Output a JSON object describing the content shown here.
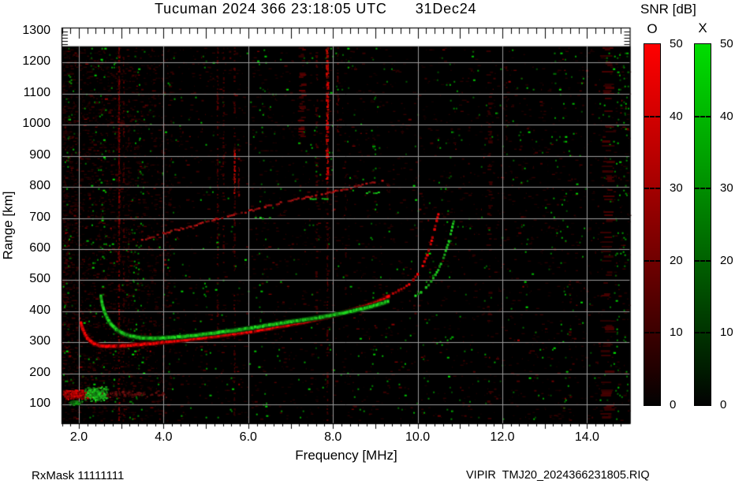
{
  "title": {
    "text": "Tucuman 2024 366 23:18:05 UTC",
    "date": "31Dec24"
  },
  "footer": {
    "rx_mask": "RxMask 11111111",
    "file": "VIPIR  TMJ20_2024366231805.RIQ"
  },
  "chart_data": {
    "type": "heatmap",
    "title": "Tucuman 2024 366 23:18:05 UTC 31Dec24",
    "xlabel": "Frequency [MHz]",
    "ylabel": "Range [km]",
    "xlim": [
      1.6,
      15.0
    ],
    "ylim": [
      40,
      1310
    ],
    "data_top_km": 1252,
    "grid": true,
    "background": "#000000",
    "grid_color": "#9c9c9c",
    "x_tick_values": [
      2,
      4,
      6,
      8,
      10,
      12,
      14
    ],
    "x_tick_labels": [
      "2.0",
      "4.0",
      "6.0",
      "8.0",
      "10.0",
      "12.0",
      "14.0"
    ],
    "y_tick_values": [
      100,
      200,
      300,
      400,
      500,
      600,
      700,
      800,
      900,
      1000,
      1100,
      1200,
      1300
    ],
    "y_tick_labels": [
      "100",
      "200",
      "300",
      "400",
      "500",
      "600",
      "700",
      "800",
      "900",
      "1000",
      "1100",
      "1200",
      "1300"
    ],
    "minor_tick_step_mhz": 0.2,
    "minor_tick_step_km": 10,
    "colorbar": {
      "title": "SNR [dB]",
      "min": 0,
      "max": 50,
      "tick_values": [
        50,
        40,
        30,
        20,
        10,
        0
      ],
      "bars": [
        {
          "name": "O",
          "color": "#ff0000"
        },
        {
          "name": "X",
          "color": "#00dd00"
        }
      ]
    },
    "series": [
      {
        "name": "f2-o-main-trace",
        "mode": "O",
        "style": "line",
        "thickness": 3.2,
        "color": "#ee0505",
        "points": [
          [
            2.05,
            362
          ],
          [
            2.09,
            344
          ],
          [
            2.14,
            328
          ],
          [
            2.2,
            314
          ],
          [
            2.28,
            303
          ],
          [
            2.38,
            295
          ],
          [
            2.5,
            290
          ],
          [
            2.65,
            288
          ],
          [
            2.85,
            288
          ],
          [
            3.1,
            290
          ],
          [
            3.4,
            293
          ],
          [
            3.75,
            297
          ],
          [
            4.1,
            302
          ],
          [
            4.5,
            308
          ],
          [
            4.9,
            314
          ],
          [
            5.3,
            321
          ],
          [
            5.7,
            328
          ],
          [
            6.1,
            336
          ],
          [
            6.5,
            345
          ],
          [
            6.9,
            355
          ],
          [
            7.3,
            365
          ],
          [
            7.7,
            377
          ],
          [
            8.1,
            390
          ],
          [
            8.5,
            405
          ],
          [
            8.85,
            420
          ],
          [
            9.1,
            433
          ],
          [
            9.32,
            448
          ]
        ]
      },
      {
        "name": "f2-x-main-trace",
        "mode": "X",
        "style": "line",
        "thickness": 3.4,
        "color": "#1ecc1e",
        "points": [
          [
            2.52,
            448
          ],
          [
            2.55,
            424
          ],
          [
            2.6,
            400
          ],
          [
            2.67,
            378
          ],
          [
            2.76,
            358
          ],
          [
            2.88,
            342
          ],
          [
            3.02,
            330
          ],
          [
            3.2,
            321
          ],
          [
            3.45,
            315
          ],
          [
            3.75,
            313
          ],
          [
            4.1,
            315
          ],
          [
            4.5,
            319
          ],
          [
            4.9,
            325
          ],
          [
            5.3,
            332
          ],
          [
            5.7,
            339
          ],
          [
            6.1,
            347
          ],
          [
            6.5,
            356
          ],
          [
            6.9,
            365
          ],
          [
            7.3,
            372
          ],
          [
            7.7,
            381
          ],
          [
            8.1,
            391
          ],
          [
            8.5,
            402
          ],
          [
            8.85,
            413
          ],
          [
            9.1,
            423
          ],
          [
            9.3,
            432
          ]
        ]
      },
      {
        "name": "f2-o-cusp-trace",
        "mode": "O",
        "style": "dots",
        "color": "#e60505",
        "points": [
          [
            9.42,
            458
          ],
          [
            9.55,
            466
          ],
          [
            9.68,
            476
          ],
          [
            9.8,
            488
          ],
          [
            9.9,
            502
          ],
          [
            10.0,
            518
          ],
          [
            10.08,
            537
          ],
          [
            10.16,
            558
          ],
          [
            10.23,
            582
          ],
          [
            10.29,
            608
          ],
          [
            10.35,
            636
          ],
          [
            10.4,
            664
          ],
          [
            10.45,
            692
          ],
          [
            10.49,
            712
          ]
        ]
      },
      {
        "name": "f2-x-cusp-trace",
        "mode": "X",
        "style": "dots",
        "color": "#1cc41c",
        "points": [
          [
            9.95,
            448
          ],
          [
            10.08,
            460
          ],
          [
            10.2,
            476
          ],
          [
            10.32,
            495
          ],
          [
            10.42,
            517
          ],
          [
            10.52,
            543
          ],
          [
            10.61,
            572
          ],
          [
            10.69,
            604
          ],
          [
            10.76,
            638
          ],
          [
            10.82,
            672
          ],
          [
            10.87,
            700
          ]
        ]
      },
      {
        "name": "oblique-echo-trace",
        "mode": "O",
        "style": "patchy",
        "color": "#aa1212",
        "points": [
          [
            3.45,
            628
          ],
          [
            4.0,
            650
          ],
          [
            4.6,
            672
          ],
          [
            5.2,
            694
          ],
          [
            5.8,
            714
          ],
          [
            6.4,
            736
          ],
          [
            7.0,
            756
          ],
          [
            7.6,
            772
          ],
          [
            8.2,
            790
          ],
          [
            8.7,
            805
          ],
          [
            9.17,
            820
          ]
        ]
      },
      {
        "name": "oblique-echo-x-dashes",
        "mode": "X",
        "style": "dashes",
        "color": "#17b817",
        "segments": [
          [
            6.15,
            6.5,
            700
          ],
          [
            7.45,
            7.85,
            760
          ],
          [
            8.72,
            9.08,
            782
          ]
        ]
      },
      {
        "name": "es-layer-o-patch",
        "mode": "O",
        "style": "blob",
        "color": "#dc0505",
        "f_range": [
          1.6,
          2.35
        ],
        "r_range": [
          118,
          152
        ],
        "count": 260
      },
      {
        "name": "es-layer-x-patch",
        "mode": "X",
        "style": "blob",
        "color": "#20c820",
        "f_range": [
          2.1,
          2.72
        ],
        "r_range": [
          112,
          160
        ],
        "count": 220
      },
      {
        "name": "es-layer-x-patch-low",
        "mode": "X",
        "style": "blob",
        "color": "#18a818",
        "f_range": [
          1.74,
          2.06
        ],
        "r_range": [
          100,
          116
        ],
        "count": 60
      },
      {
        "name": "es-layer-o-faint-extension",
        "mode": "O",
        "style": "blob",
        "color": "#6e1010",
        "f_range": [
          2.5,
          4.1
        ],
        "r_range": [
          124,
          148
        ],
        "count": 80
      }
    ],
    "rfi": {
      "red_lines": [
        {
          "f": 2.95,
          "r0": 40,
          "r1": 1250,
          "strength": 0.5,
          "width": 2
        },
        {
          "f": 2.95,
          "r0": 650,
          "r1": 1250,
          "strength": 0.5,
          "width": 2
        },
        {
          "f": 3.06,
          "r0": 40,
          "r1": 1250,
          "strength": 0.25,
          "width": 2
        },
        {
          "f": 3.18,
          "r0": 200,
          "r1": 1100,
          "strength": 0.15,
          "width": 1
        },
        {
          "f": 4.0,
          "r0": 40,
          "r1": 1250,
          "strength": 0.12,
          "width": 2
        },
        {
          "f": 5.28,
          "r0": 300,
          "r1": 1250,
          "strength": 0.3,
          "width": 2
        },
        {
          "f": 5.42,
          "r0": 550,
          "r1": 1250,
          "strength": 0.22,
          "width": 2
        },
        {
          "f": 5.68,
          "r0": 40,
          "r1": 1250,
          "strength": 0.25,
          "width": 2
        },
        {
          "f": 5.68,
          "r0": 780,
          "r1": 930,
          "strength": 0.85,
          "width": 2
        },
        {
          "f": 5.78,
          "r0": 770,
          "r1": 920,
          "strength": 0.5,
          "width": 2
        },
        {
          "f": 7.28,
          "r0": 950,
          "r1": 1250,
          "strength": 0.3,
          "width": 7
        },
        {
          "f": 7.62,
          "r0": 350,
          "r1": 1250,
          "strength": 0.18,
          "width": 3
        },
        {
          "f": 7.87,
          "r0": 820,
          "r1": 1245,
          "strength": 0.95,
          "width": 3
        },
        {
          "f": 7.87,
          "r0": 40,
          "r1": 820,
          "strength": 0.3,
          "width": 2
        },
        {
          "f": 8.12,
          "r0": 950,
          "r1": 1250,
          "strength": 0.25,
          "width": 2
        },
        {
          "f": 8.3,
          "r0": 400,
          "r1": 900,
          "strength": 0.12,
          "width": 2
        },
        {
          "f": 11.7,
          "r0": 40,
          "r1": 1250,
          "strength": 0.1,
          "width": 5
        },
        {
          "f": 12.1,
          "r0": 900,
          "r1": 1250,
          "strength": 0.12,
          "width": 2
        },
        {
          "f": 13.6,
          "r0": 40,
          "r1": 500,
          "strength": 0.1,
          "width": 3
        },
        {
          "f": 14.5,
          "r0": 40,
          "r1": 1250,
          "strength": 0.18,
          "width": 12
        }
      ],
      "green_columns": [
        {
          "f": 1.75,
          "w": 1.5
        },
        {
          "f": 2.3,
          "w": 1.5
        },
        {
          "f": 2.55,
          "w": 2
        },
        {
          "f": 2.8,
          "w": 1
        },
        {
          "f": 3.3,
          "w": 2
        },
        {
          "f": 3.45,
          "w": 1.5
        },
        {
          "f": 4.2,
          "w": 0.5
        },
        {
          "f": 5.0,
          "w": 0.5
        },
        {
          "f": 6.35,
          "w": 0.7
        },
        {
          "f": 8.95,
          "w": 0.7
        },
        {
          "f": 10.75,
          "w": 1
        },
        {
          "f": 13.2,
          "w": 1
        },
        {
          "f": 13.45,
          "w": 1
        },
        {
          "f": 14.7,
          "w": 2
        },
        {
          "f": 14.9,
          "w": 1.5
        }
      ]
    },
    "noise": {
      "seed": 20241231,
      "red_dashes": 5600,
      "green_dots": 950
    }
  }
}
